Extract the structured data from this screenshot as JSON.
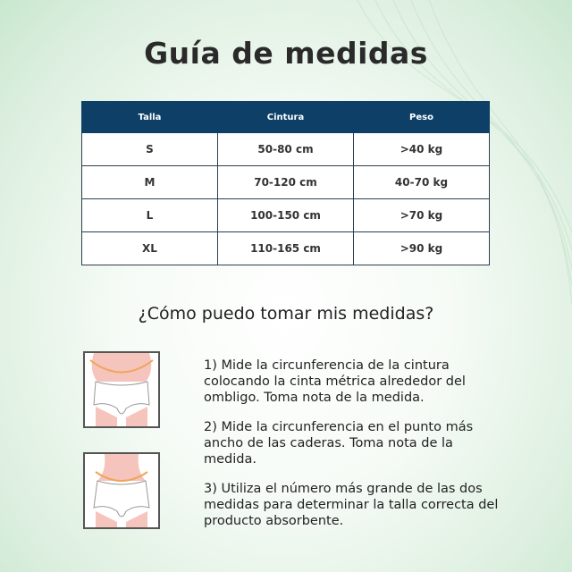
{
  "title": "Guía de medidas",
  "table": {
    "headers": [
      "Talla",
      "Cintura",
      "Peso"
    ],
    "rows": [
      [
        "S",
        "50-80 cm",
        ">40 kg"
      ],
      [
        "M",
        "70-120 cm",
        "40-70 kg"
      ],
      [
        "L",
        "100-150 cm",
        ">70 kg"
      ],
      [
        "XL",
        "110-165 cm",
        ">90 kg"
      ]
    ]
  },
  "subtitle": "¿Cómo puedo tomar mis medidas?",
  "steps": [
    "1) Mide la circunferencia de la cintura colocando la cinta métrica alrededor del ombligo. Toma nota de la medida.",
    "2) Mide la circunferencia en el punto más ancho de las caderas. Toma nota de la medida.",
    "3) Utiliza el número más grande de las dos medidas para determinar la talla correcta del producto absorbente."
  ],
  "colors": {
    "header": "#0e3f66",
    "skin": "#f5c4bd",
    "tape": "#f0a55a"
  }
}
